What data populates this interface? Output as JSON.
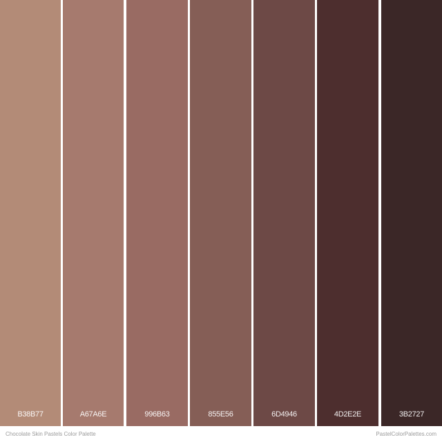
{
  "palette": {
    "swatches": [
      {
        "hex_label": "B38B77",
        "color": "#B38B77"
      },
      {
        "hex_label": "A67A6E",
        "color": "#A67A6E"
      },
      {
        "hex_label": "996B63",
        "color": "#996B63"
      },
      {
        "hex_label": "855E56",
        "color": "#855E56"
      },
      {
        "hex_label": "6D4946",
        "color": "#6D4946"
      },
      {
        "hex_label": "4D2E2E",
        "color": "#4D2E2E"
      },
      {
        "hex_label": "3B2727",
        "color": "#3B2727"
      }
    ]
  },
  "footer": {
    "title": "Chocolate Skin Pastels Color Palette",
    "site": "PastelColorPalettes.com"
  }
}
